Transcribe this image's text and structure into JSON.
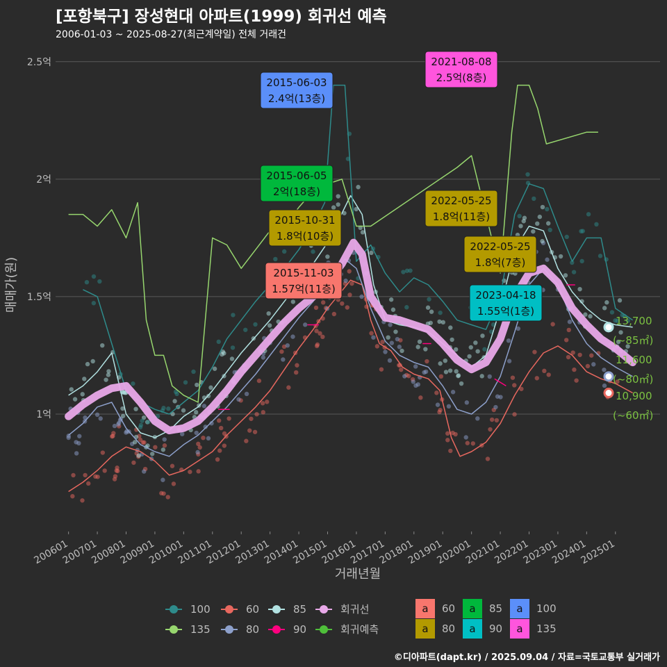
{
  "header": {
    "title": "[포항북구] 장성현대 아파트(1999) 회귀선 예측",
    "subtitle": "2006-01-03 ~ 2025-08-27(최근계약일) 전체 거래건",
    "footer": "©디아파트(dapt.kr) / 2025.09.04 / 자료=국토교통부 실거래가"
  },
  "chart_data": {
    "type": "line",
    "xlabel": "거래년월",
    "ylabel": "매매가(원)",
    "x_range": [
      "2006-01",
      "2025-09"
    ],
    "ylim": [
      0.5,
      2.6
    ],
    "y_ticks": [
      {
        "value": 1.0,
        "label": "1억"
      },
      {
        "value": 1.5,
        "label": "1.5억"
      },
      {
        "value": 2.0,
        "label": "2억"
      },
      {
        "value": 2.5,
        "label": "2.5억"
      }
    ],
    "x_ticks": [
      "200601",
      "200701",
      "200801",
      "200901",
      "201001",
      "201101",
      "201201",
      "201301",
      "201401",
      "201501",
      "201601",
      "201701",
      "201801",
      "201901",
      "202001",
      "202101",
      "202201",
      "202301",
      "202401",
      "202501"
    ],
    "grid": "horizontal",
    "series": [
      {
        "name": "60",
        "color": "#e8685f",
        "values": [
          [
            2006.0,
            0.67
          ],
          [
            2006.5,
            0.71
          ],
          [
            2007.0,
            0.76
          ],
          [
            2007.5,
            0.82
          ],
          [
            2008.0,
            0.86
          ],
          [
            2008.5,
            0.84
          ],
          [
            2009.0,
            0.8
          ],
          [
            2009.5,
            0.74
          ],
          [
            2010.0,
            0.76
          ],
          [
            2010.5,
            0.8
          ],
          [
            2011.0,
            0.84
          ],
          [
            2011.5,
            0.91
          ],
          [
            2012.0,
            0.97
          ],
          [
            2012.5,
            1.03
          ],
          [
            2013.0,
            1.1
          ],
          [
            2013.5,
            1.19
          ],
          [
            2014.0,
            1.28
          ],
          [
            2014.5,
            1.36
          ],
          [
            2015.0,
            1.45
          ],
          [
            2015.8,
            1.57
          ],
          [
            2016.2,
            1.55
          ],
          [
            2016.5,
            1.4
          ],
          [
            2016.8,
            1.3
          ],
          [
            2017.2,
            1.27
          ],
          [
            2017.6,
            1.2
          ],
          [
            2018.0,
            1.17
          ],
          [
            2018.5,
            1.15
          ],
          [
            2018.9,
            1.1
          ],
          [
            2019.3,
            0.9
          ],
          [
            2019.6,
            0.82
          ],
          [
            2020.0,
            0.84
          ],
          [
            2020.5,
            0.88
          ],
          [
            2021.0,
            0.96
          ],
          [
            2021.5,
            1.08
          ],
          [
            2022.0,
            1.18
          ],
          [
            2022.5,
            1.26
          ],
          [
            2023.0,
            1.29
          ],
          [
            2023.5,
            1.25
          ],
          [
            2024.0,
            1.18
          ],
          [
            2024.5,
            1.15
          ],
          [
            2025.0,
            1.13
          ],
          [
            2025.6,
            1.09
          ]
        ]
      },
      {
        "name": "80",
        "color": "#8da0cb",
        "values": [
          [
            2006.0,
            0.91
          ],
          [
            2006.5,
            0.96
          ],
          [
            2007.0,
            1.03
          ],
          [
            2007.5,
            1.05
          ],
          [
            2008.0,
            0.94
          ],
          [
            2008.5,
            0.87
          ],
          [
            2009.0,
            0.84
          ],
          [
            2009.5,
            0.82
          ],
          [
            2010.0,
            0.87
          ],
          [
            2010.5,
            0.91
          ],
          [
            2011.0,
            0.97
          ],
          [
            2011.5,
            1.03
          ],
          [
            2012.0,
            1.1
          ],
          [
            2012.5,
            1.17
          ],
          [
            2013.0,
            1.25
          ],
          [
            2013.5,
            1.33
          ],
          [
            2014.0,
            1.41
          ],
          [
            2014.5,
            1.48
          ],
          [
            2015.0,
            1.56
          ],
          [
            2015.6,
            1.66
          ],
          [
            2016.0,
            1.62
          ],
          [
            2016.5,
            1.45
          ],
          [
            2017.0,
            1.31
          ],
          [
            2017.5,
            1.25
          ],
          [
            2018.0,
            1.22
          ],
          [
            2018.5,
            1.2
          ],
          [
            2019.0,
            1.12
          ],
          [
            2019.5,
            1.02
          ],
          [
            2020.0,
            1.0
          ],
          [
            2020.5,
            1.05
          ],
          [
            2021.0,
            1.16
          ],
          [
            2021.5,
            1.35
          ],
          [
            2022.0,
            1.55
          ],
          [
            2022.5,
            1.62
          ],
          [
            2023.0,
            1.55
          ],
          [
            2023.5,
            1.4
          ],
          [
            2024.0,
            1.3
          ],
          [
            2024.5,
            1.24
          ],
          [
            2025.0,
            1.2
          ],
          [
            2025.6,
            1.16
          ]
        ]
      },
      {
        "name": "85",
        "color": "#b2e2e2",
        "values": [
          [
            2006.0,
            1.08
          ],
          [
            2006.5,
            1.12
          ],
          [
            2007.0,
            1.18
          ],
          [
            2007.5,
            1.26
          ],
          [
            2008.0,
            1.0
          ],
          [
            2008.5,
            0.92
          ],
          [
            2009.0,
            0.9
          ],
          [
            2009.5,
            0.93
          ],
          [
            2010.0,
            0.99
          ],
          [
            2010.5,
            1.03
          ],
          [
            2011.0,
            1.1
          ],
          [
            2011.5,
            1.18
          ],
          [
            2012.0,
            1.26
          ],
          [
            2012.5,
            1.33
          ],
          [
            2013.0,
            1.4
          ],
          [
            2013.5,
            1.48
          ],
          [
            2014.0,
            1.56
          ],
          [
            2014.5,
            1.64
          ],
          [
            2015.0,
            1.73
          ],
          [
            2015.8,
            1.93
          ],
          [
            2016.2,
            1.85
          ],
          [
            2016.6,
            1.55
          ],
          [
            2017.0,
            1.4
          ],
          [
            2017.5,
            1.38
          ],
          [
            2018.0,
            1.37
          ],
          [
            2018.5,
            1.35
          ],
          [
            2019.0,
            1.3
          ],
          [
            2019.5,
            1.25
          ],
          [
            2020.0,
            1.2
          ],
          [
            2020.5,
            1.25
          ],
          [
            2021.0,
            1.45
          ],
          [
            2021.5,
            1.7
          ],
          [
            2022.0,
            1.8
          ],
          [
            2022.5,
            1.78
          ],
          [
            2023.0,
            1.62
          ],
          [
            2023.5,
            1.52
          ],
          [
            2024.0,
            1.45
          ],
          [
            2024.5,
            1.4
          ],
          [
            2025.0,
            1.38
          ],
          [
            2025.6,
            1.37
          ]
        ]
      },
      {
        "name": "100",
        "color": "#2e8b8b",
        "values": [
          [
            2006.5,
            1.53
          ],
          [
            2007.0,
            1.5
          ],
          [
            2007.5,
            1.3
          ],
          [
            2008.0,
            1.1
          ],
          [
            2008.5,
            1.05
          ],
          [
            2009.0,
            1.02
          ],
          [
            2009.5,
            1.0
          ],
          [
            2010.0,
            1.05
          ],
          [
            2010.5,
            1.1
          ],
          [
            2011.0,
            1.2
          ],
          [
            2011.5,
            1.32
          ],
          [
            2012.0,
            1.4
          ],
          [
            2012.5,
            1.48
          ],
          [
            2013.0,
            1.55
          ],
          [
            2013.5,
            1.62
          ],
          [
            2014.0,
            1.7
          ],
          [
            2014.5,
            1.8
          ],
          [
            2014.9,
            1.9
          ],
          [
            2015.2,
            2.4
          ],
          [
            2015.6,
            2.4
          ],
          [
            2016.0,
            1.65
          ],
          [
            2016.5,
            1.72
          ],
          [
            2017.0,
            1.6
          ],
          [
            2017.5,
            1.52
          ],
          [
            2018.0,
            1.58
          ],
          [
            2018.5,
            1.55
          ],
          [
            2019.0,
            1.48
          ],
          [
            2019.5,
            1.4
          ],
          [
            2020.0,
            1.38
          ],
          [
            2020.5,
            1.36
          ],
          [
            2021.0,
            1.5
          ],
          [
            2021.5,
            1.85
          ],
          [
            2022.0,
            1.98
          ],
          [
            2022.5,
            1.96
          ],
          [
            2023.0,
            1.8
          ],
          [
            2023.5,
            1.65
          ],
          [
            2024.0,
            1.75
          ],
          [
            2024.5,
            1.75
          ],
          [
            2025.0,
            1.45
          ],
          [
            2025.6,
            1.4
          ]
        ]
      },
      {
        "name": "135",
        "color": "#97d66e",
        "values": [
          [
            2006.0,
            1.85
          ],
          [
            2006.5,
            1.85
          ],
          [
            2007.0,
            1.8
          ],
          [
            2007.5,
            1.87
          ],
          [
            2008.0,
            1.75
          ],
          [
            2008.4,
            1.9
          ],
          [
            2008.7,
            1.4
          ],
          [
            2009.0,
            1.25
          ],
          [
            2009.3,
            1.25
          ],
          [
            2009.6,
            1.12
          ],
          [
            2010.0,
            1.08
          ],
          [
            2010.5,
            1.05
          ],
          [
            2011.0,
            1.75
          ],
          [
            2011.5,
            1.72
          ],
          [
            2012.0,
            1.62
          ],
          [
            2012.5,
            1.7
          ],
          [
            2013.0,
            1.78
          ],
          [
            2013.5,
            1.8
          ],
          [
            2014.0,
            1.88
          ],
          [
            2014.5,
            1.95
          ],
          [
            2015.0,
            1.98
          ],
          [
            2015.5,
            2.0
          ],
          [
            2016.0,
            1.8
          ],
          [
            2016.5,
            1.8
          ],
          [
            2019.5,
            2.05
          ],
          [
            2020.0,
            2.1
          ],
          [
            2021.0,
            1.6
          ],
          [
            2021.4,
            2.2
          ],
          [
            2021.6,
            2.4
          ],
          [
            2022.0,
            2.4
          ],
          [
            2022.3,
            2.3
          ],
          [
            2022.6,
            2.15
          ],
          [
            2024.0,
            2.2
          ],
          [
            2024.4,
            2.2
          ]
        ]
      },
      {
        "name": "90",
        "color": "#ff007f",
        "values": [
          [
            2011.2,
            1.02
          ],
          [
            2011.6,
            1.02
          ],
          [
            2014.3,
            1.38
          ],
          [
            2014.7,
            1.38
          ],
          [
            2018.3,
            1.3
          ],
          [
            2018.6,
            1.3
          ],
          [
            2020.8,
            1.15
          ],
          [
            2021.2,
            1.12
          ],
          [
            2023.3,
            1.55
          ],
          [
            2023.6,
            1.55
          ]
        ]
      },
      {
        "name": "회귀선",
        "color": "#e8a8e8",
        "values": [
          [
            2006.0,
            0.99
          ],
          [
            2006.5,
            1.04
          ],
          [
            2007.0,
            1.08
          ],
          [
            2007.5,
            1.11
          ],
          [
            2008.0,
            1.12
          ],
          [
            2008.5,
            1.05
          ],
          [
            2009.0,
            0.97
          ],
          [
            2009.5,
            0.93
          ],
          [
            2010.0,
            0.94
          ],
          [
            2010.5,
            0.97
          ],
          [
            2011.0,
            1.03
          ],
          [
            2011.5,
            1.1
          ],
          [
            2012.0,
            1.18
          ],
          [
            2012.5,
            1.25
          ],
          [
            2013.0,
            1.32
          ],
          [
            2013.5,
            1.39
          ],
          [
            2014.0,
            1.45
          ],
          [
            2014.5,
            1.5
          ],
          [
            2015.0,
            1.56
          ],
          [
            2015.5,
            1.64
          ],
          [
            2015.9,
            1.73
          ],
          [
            2016.2,
            1.68
          ],
          [
            2016.5,
            1.5
          ],
          [
            2017.0,
            1.41
          ],
          [
            2017.5,
            1.4
          ],
          [
            2018.0,
            1.38
          ],
          [
            2018.5,
            1.36
          ],
          [
            2019.0,
            1.3
          ],
          [
            2019.5,
            1.23
          ],
          [
            2020.0,
            1.19
          ],
          [
            2020.5,
            1.22
          ],
          [
            2021.0,
            1.32
          ],
          [
            2021.5,
            1.5
          ],
          [
            2022.0,
            1.6
          ],
          [
            2022.5,
            1.62
          ],
          [
            2023.0,
            1.56
          ],
          [
            2023.5,
            1.45
          ],
          [
            2024.0,
            1.38
          ],
          [
            2024.5,
            1.32
          ],
          [
            2025.0,
            1.28
          ],
          [
            2025.6,
            1.22
          ]
        ]
      }
    ],
    "annotations": [
      {
        "date": "2021-08-08",
        "text": "2.5억(8층)",
        "color": "#ff55dd",
        "x": 2021.6,
        "y": 2.5
      },
      {
        "date": "2015-06-03",
        "text": "2.4억(13층)",
        "color": "#5b8ff9",
        "x": 2015.4,
        "y": 2.4
      },
      {
        "date": "2015-06-05",
        "text": "2억(18층)",
        "color": "#00b83c",
        "x": 2015.4,
        "y": 2.0
      },
      {
        "date": "2022-05-25",
        "text": "1.8억(11층)",
        "color": "#b39a00",
        "x": 2022.4,
        "y": 1.8
      },
      {
        "date": "2015-10-31",
        "text": "1.8억(10층)",
        "color": "#b39a00",
        "x": 2015.8,
        "y": 1.8
      },
      {
        "date": "2022-05-25",
        "text": "1.8억(7층)",
        "color": "#b39a00",
        "x": 2022.4,
        "y": 1.8
      },
      {
        "date": "2015-11-03",
        "text": "1.57억(11층)",
        "color": "#f8766d",
        "x": 2015.8,
        "y": 1.57
      },
      {
        "date": "2023-04-18",
        "text": "1.55억(1층)",
        "color": "#00bfc4",
        "x": 2023.3,
        "y": 1.55
      }
    ],
    "end_labels": [
      {
        "price": "13,700",
        "size": "(~85㎡)",
        "y": 1.37,
        "dot": "#b2e2e2"
      },
      {
        "price": "11,600",
        "size": "(~80㎡)",
        "y": 1.16,
        "dot": "#8da0cb"
      },
      {
        "price": "10,900",
        "size": "(~60㎡)",
        "y": 1.09,
        "dot": "#e8685f"
      }
    ]
  },
  "legend": {
    "lines": [
      {
        "label": "100",
        "color": "#2e8b8b"
      },
      {
        "label": "60",
        "color": "#e8685f"
      },
      {
        "label": "85",
        "color": "#b2e2e2"
      },
      {
        "label": "회귀선",
        "color": "#e8a8e8"
      },
      {
        "label": "135",
        "color": "#97d66e"
      },
      {
        "label": "80",
        "color": "#8da0cb"
      },
      {
        "label": "90",
        "color": "#ff007f"
      },
      {
        "label": "회귀예측",
        "color": "#4fbf3a"
      }
    ],
    "boxes": [
      {
        "label": "60",
        "color": "#f8766d"
      },
      {
        "label": "85",
        "color": "#00b83c"
      },
      {
        "label": "100",
        "color": "#5b8ff9"
      },
      {
        "label": "80",
        "color": "#b39a00"
      },
      {
        "label": "90",
        "color": "#00bfc4"
      },
      {
        "label": "135",
        "color": "#ff55dd"
      }
    ],
    "box_glyph": "a"
  }
}
